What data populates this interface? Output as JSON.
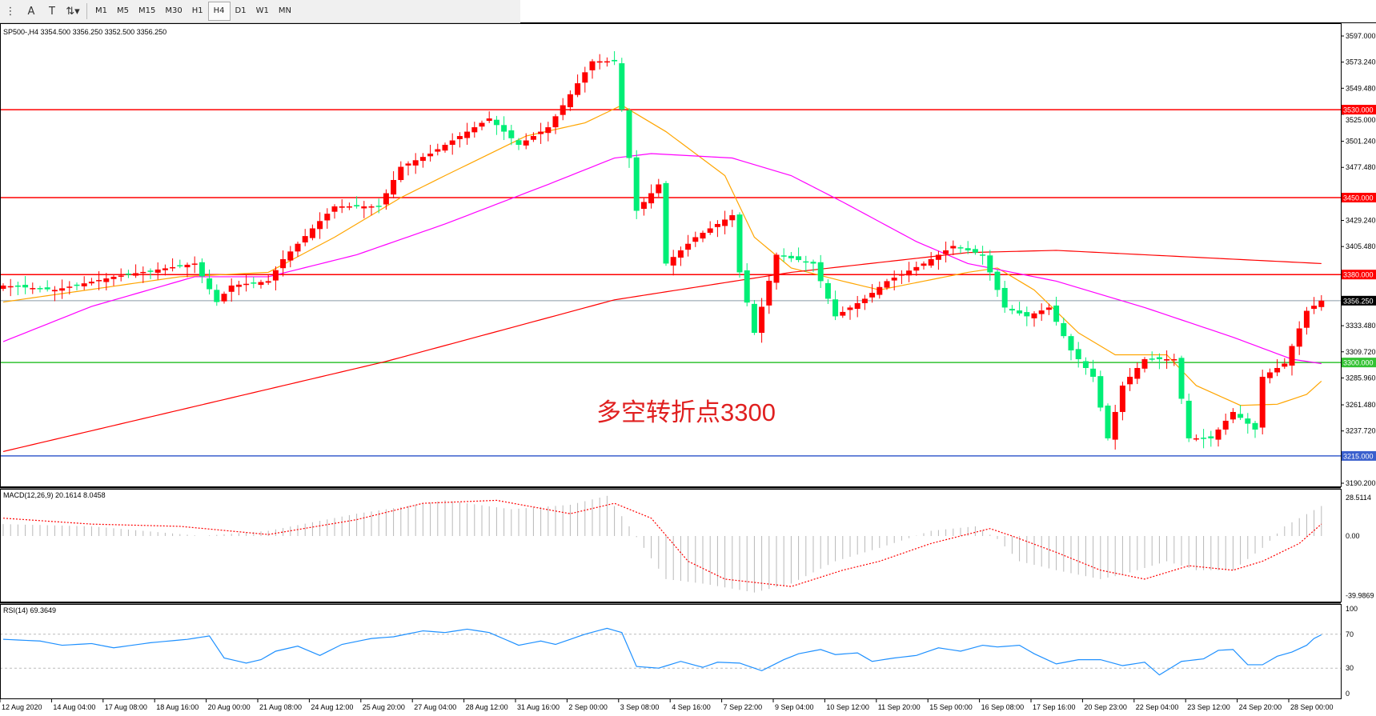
{
  "toolbar": {
    "icons": [
      "grip-icon",
      "text-a-icon",
      "text-label-icon",
      "arrows-icon"
    ],
    "timeframes": [
      "M1",
      "M5",
      "M15",
      "M30",
      "H1",
      "H4",
      "D1",
      "W1",
      "MN"
    ],
    "active_timeframe": "H4"
  },
  "chart": {
    "header": "SP500-,H4  3354.500 3356.250 3352.500 3356.250",
    "annotation": "多空转折点3300",
    "colors": {
      "bull": "#ff0000",
      "bear": "#00ee76",
      "ma_fast": "#ffa500",
      "ma_mid": "#ff00ff",
      "ma_slow": "#ff0000",
      "annotation": "#e02020"
    },
    "price_axis_labels": [
      "3597.000",
      "3573.240",
      "3549.480",
      "3525.000",
      "3501.240",
      "3477.480",
      "3429.240",
      "3405.480",
      "3333.480",
      "3309.720",
      "3285.960",
      "3261.480",
      "3237.720",
      "3190.200"
    ],
    "levels": [
      {
        "price": 3530,
        "label": "3530.000",
        "color": "#ff0000"
      },
      {
        "price": 3450,
        "label": "3450.000",
        "color": "#ff0000"
      },
      {
        "price": 3380,
        "label": "3380.000",
        "color": "#ff0000"
      },
      {
        "price": 3300,
        "label": "3300.000",
        "color": "#33c233"
      },
      {
        "price": 3215,
        "label": "3215.000",
        "color": "#3a5fcd"
      }
    ],
    "current_price": {
      "price": 3356.25,
      "label": "3356.250"
    },
    "time_labels": [
      "12 Aug 2020",
      "14 Aug 04:00",
      "17 Aug 08:00",
      "18 Aug 16:00",
      "20 Aug 00:00",
      "21 Aug 08:00",
      "24 Aug 12:00",
      "25 Aug 20:00",
      "27 Aug 04:00",
      "28 Aug 12:00",
      "31 Aug 16:00",
      "2 Sep 00:00",
      "3 Sep 08:00",
      "4 Sep 16:00",
      "7 Sep 22:00",
      "9 Sep 04:00",
      "10 Sep 12:00",
      "11 Sep 20:00",
      "15 Sep 00:00",
      "16 Sep 08:00",
      "17 Sep 16:00",
      "20 Sep 23:00",
      "22 Sep 04:00",
      "23 Sep 12:00",
      "24 Sep 20:00",
      "28 Sep 00:00"
    ]
  },
  "chart_data": {
    "type": "candlestick",
    "symbol": "SP500-",
    "timeframe": "H4",
    "candle_count": 180,
    "ylim": [
      3190.2,
      3597.0
    ],
    "close_path": [
      [
        0,
        3370
      ],
      [
        7,
        3366
      ],
      [
        15,
        3378
      ],
      [
        26,
        3390
      ],
      [
        29,
        3355
      ],
      [
        31,
        3370
      ],
      [
        36,
        3374
      ],
      [
        38,
        3394
      ],
      [
        42,
        3422
      ],
      [
        45,
        3442
      ],
      [
        51,
        3442
      ],
      [
        54,
        3478
      ],
      [
        58,
        3490
      ],
      [
        61,
        3502
      ],
      [
        66,
        3522
      ],
      [
        70,
        3498
      ],
      [
        74,
        3514
      ],
      [
        76,
        3534
      ],
      [
        80,
        3574
      ],
      [
        83,
        3574
      ],
      [
        85,
        3486
      ],
      [
        86,
        3438
      ],
      [
        89,
        3462
      ],
      [
        90,
        3390
      ],
      [
        94,
        3414
      ],
      [
        99,
        3434
      ],
      [
        100,
        3382
      ],
      [
        102,
        3327
      ],
      [
        105,
        3398
      ],
      [
        110,
        3390
      ],
      [
        113,
        3342
      ],
      [
        117,
        3358
      ],
      [
        120,
        3374
      ],
      [
        125,
        3390
      ],
      [
        129,
        3406
      ],
      [
        133,
        3398
      ],
      [
        136,
        3350
      ],
      [
        139,
        3342
      ],
      [
        142,
        3350
      ],
      [
        145,
        3311
      ],
      [
        148,
        3287
      ],
      [
        150,
        3231
      ],
      [
        152,
        3279
      ],
      [
        155,
        3303
      ],
      [
        159,
        3303
      ],
      [
        161,
        3231
      ],
      [
        164,
        3231
      ],
      [
        167,
        3255
      ],
      [
        170,
        3239
      ],
      [
        171,
        3287
      ],
      [
        174,
        3299
      ],
      [
        176,
        3331
      ],
      [
        177,
        3347
      ],
      [
        179,
        3356.25
      ]
    ],
    "ma_fast": [
      [
        0,
        3355
      ],
      [
        24,
        3378
      ],
      [
        36,
        3382
      ],
      [
        45,
        3414
      ],
      [
        54,
        3450
      ],
      [
        60,
        3470
      ],
      [
        71,
        3506
      ],
      [
        79,
        3518
      ],
      [
        84,
        3534
      ],
      [
        90,
        3510
      ],
      [
        98,
        3470
      ],
      [
        102,
        3414
      ],
      [
        107,
        3386
      ],
      [
        114,
        3374
      ],
      [
        119,
        3366
      ],
      [
        125,
        3374
      ],
      [
        131,
        3382
      ],
      [
        135,
        3386
      ],
      [
        140,
        3366
      ],
      [
        146,
        3327
      ],
      [
        151,
        3307
      ],
      [
        158,
        3307
      ],
      [
        162,
        3279
      ],
      [
        168,
        3261
      ],
      [
        173,
        3262
      ],
      [
        177,
        3271
      ],
      [
        179,
        3283
      ]
    ],
    "ma_mid": [
      [
        0,
        3319
      ],
      [
        12,
        3351
      ],
      [
        26,
        3378
      ],
      [
        36,
        3378
      ],
      [
        48,
        3398
      ],
      [
        60,
        3426
      ],
      [
        74,
        3462
      ],
      [
        83,
        3486
      ],
      [
        88,
        3490
      ],
      [
        99,
        3486
      ],
      [
        107,
        3470
      ],
      [
        114,
        3446
      ],
      [
        124,
        3410
      ],
      [
        131,
        3390
      ],
      [
        143,
        3374
      ],
      [
        155,
        3350
      ],
      [
        167,
        3323
      ],
      [
        175,
        3303
      ],
      [
        179,
        3299
      ]
    ],
    "ma_slow": [
      [
        0,
        3219
      ],
      [
        52,
        3301
      ],
      [
        83,
        3357
      ],
      [
        107,
        3382
      ],
      [
        131,
        3400
      ],
      [
        143,
        3402
      ],
      [
        155,
        3398
      ],
      [
        179,
        3390
      ]
    ],
    "macd": {
      "label": "MACD(12,26,9) 20.1614 8.0458",
      "ylim": [
        -39.9869,
        28.5114
      ],
      "tick_labels": [
        "28.5114",
        "0.00",
        "-39.9869"
      ],
      "histogram_path": [
        [
          0,
          8
        ],
        [
          12,
          6.5
        ],
        [
          27,
          0
        ],
        [
          36,
          3.5
        ],
        [
          48,
          15
        ],
        [
          60,
          24
        ],
        [
          69,
          18
        ],
        [
          77,
          21
        ],
        [
          82,
          27
        ],
        [
          85,
          6.5
        ],
        [
          87,
          -8
        ],
        [
          90,
          -29
        ],
        [
          95,
          -32
        ],
        [
          102,
          -38
        ],
        [
          107,
          -32
        ],
        [
          113,
          -17
        ],
        [
          119,
          -8
        ],
        [
          126,
          3.5
        ],
        [
          132,
          6.5
        ],
        [
          135,
          -2
        ],
        [
          138,
          -17
        ],
        [
          143,
          -23
        ],
        [
          149,
          -29
        ],
        [
          152,
          -26
        ],
        [
          158,
          -17
        ],
        [
          162,
          -23
        ],
        [
          167,
          -23
        ],
        [
          171,
          -8
        ],
        [
          174,
          6.5
        ],
        [
          176,
          12
        ],
        [
          179,
          20.16
        ]
      ],
      "signal_path": [
        [
          0,
          12
        ],
        [
          12,
          8
        ],
        [
          24,
          6.5
        ],
        [
          36,
          1
        ],
        [
          48,
          11
        ],
        [
          57,
          22
        ],
        [
          67,
          24
        ],
        [
          77,
          15
        ],
        [
          83,
          22
        ],
        [
          88,
          12
        ],
        [
          93,
          -17
        ],
        [
          98,
          -29
        ],
        [
          107,
          -34
        ],
        [
          114,
          -23
        ],
        [
          119,
          -17
        ],
        [
          126,
          -5
        ],
        [
          134,
          5
        ],
        [
          137,
          0
        ],
        [
          143,
          -11
        ],
        [
          149,
          -23
        ],
        [
          155,
          -29
        ],
        [
          161,
          -20
        ],
        [
          167,
          -23
        ],
        [
          171,
          -17
        ],
        [
          176,
          -5
        ],
        [
          179,
          8.05
        ]
      ]
    },
    "rsi": {
      "label": "RSI(14) 69.3649",
      "ylim": [
        0,
        100
      ],
      "tick_labels": [
        "100",
        "70",
        "30",
        "0"
      ],
      "levels": [
        70,
        30
      ],
      "path": [
        [
          0,
          64
        ],
        [
          5,
          62
        ],
        [
          8,
          57
        ],
        [
          12,
          59
        ],
        [
          15,
          54
        ],
        [
          20,
          60
        ],
        [
          25,
          64
        ],
        [
          28,
          68
        ],
        [
          30,
          42
        ],
        [
          33,
          36
        ],
        [
          35,
          40
        ],
        [
          37,
          50
        ],
        [
          40,
          56
        ],
        [
          43,
          45
        ],
        [
          46,
          58
        ],
        [
          50,
          65
        ],
        [
          53,
          67
        ],
        [
          57,
          74
        ],
        [
          60,
          72
        ],
        [
          63,
          76
        ],
        [
          66,
          72
        ],
        [
          70,
          57
        ],
        [
          73,
          62
        ],
        [
          75,
          58
        ],
        [
          79,
          70
        ],
        [
          82,
          77
        ],
        [
          84,
          72
        ],
        [
          86,
          32
        ],
        [
          89,
          30
        ],
        [
          92,
          38
        ],
        [
          95,
          31
        ],
        [
          97,
          37
        ],
        [
          100,
          36
        ],
        [
          103,
          27
        ],
        [
          106,
          40
        ],
        [
          108,
          47
        ],
        [
          111,
          52
        ],
        [
          113,
          46
        ],
        [
          116,
          48
        ],
        [
          118,
          38
        ],
        [
          121,
          42
        ],
        [
          124,
          45
        ],
        [
          127,
          54
        ],
        [
          130,
          50
        ],
        [
          133,
          57
        ],
        [
          135,
          55
        ],
        [
          138,
          57
        ],
        [
          140,
          47
        ],
        [
          143,
          35
        ],
        [
          146,
          40
        ],
        [
          149,
          40
        ],
        [
          152,
          33
        ],
        [
          155,
          37
        ],
        [
          157,
          22
        ],
        [
          160,
          38
        ],
        [
          163,
          41
        ],
        [
          165,
          51
        ],
        [
          167,
          52
        ],
        [
          169,
          34
        ],
        [
          171,
          34
        ],
        [
          173,
          44
        ],
        [
          175,
          49
        ],
        [
          177,
          57
        ],
        [
          178,
          65
        ],
        [
          179,
          69.36
        ]
      ]
    }
  }
}
